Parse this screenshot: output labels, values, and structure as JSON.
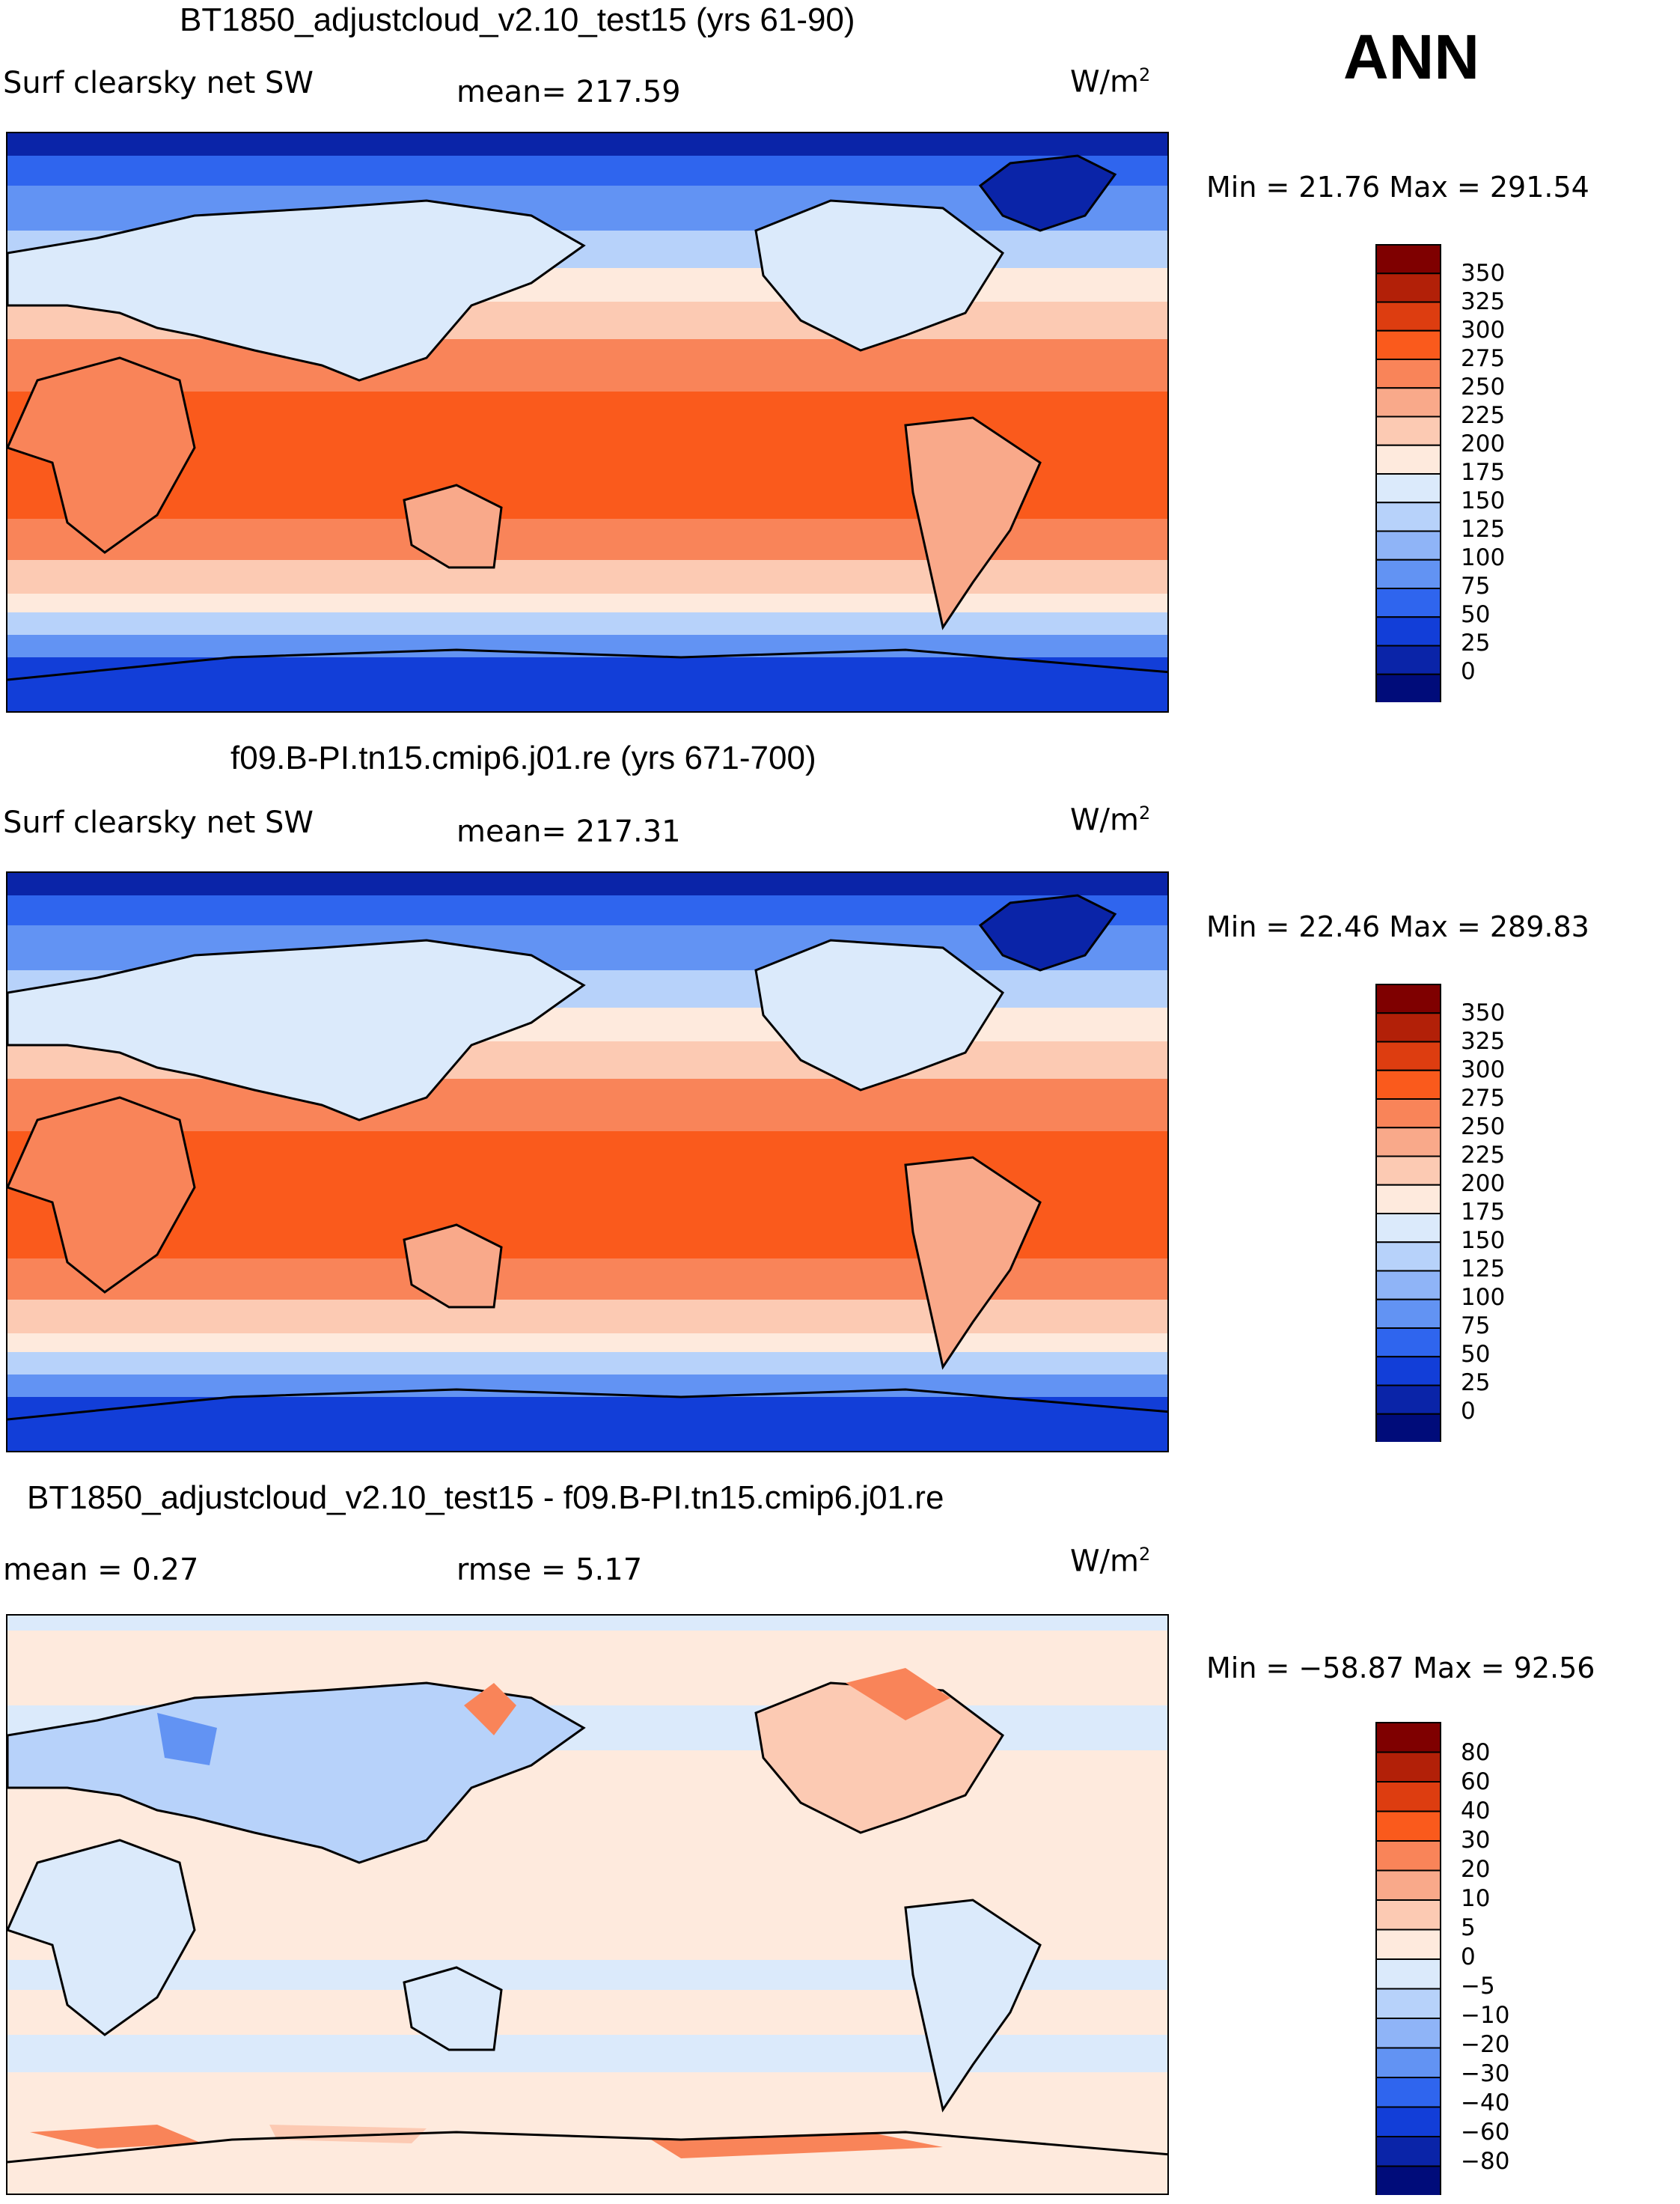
{
  "season": "ANN",
  "panels": [
    {
      "title": "BT1850_adjustcloud_v2.10_test15 (yrs 61-90)",
      "left_label": "Surf clearsky net SW",
      "mid_label": "mean= 217.59",
      "units": "W/m",
      "units_sup": "2",
      "minmax": "Min =   21.76 Max = 291.54",
      "levels": [
        "350",
        "325",
        "300",
        "275",
        "250",
        "225",
        "200",
        "175",
        "150",
        "125",
        "100",
        "75",
        "50",
        "25",
        "0"
      ]
    },
    {
      "title": "f09.B-PI.tn15.cmip6.j01.re (yrs 671-700)",
      "left_label": "Surf clearsky net SW",
      "mid_label": "mean= 217.31",
      "units": "W/m",
      "units_sup": "2",
      "minmax": "Min =   22.46 Max = 289.83",
      "levels": [
        "350",
        "325",
        "300",
        "275",
        "250",
        "225",
        "200",
        "175",
        "150",
        "125",
        "100",
        "75",
        "50",
        "25",
        "0"
      ]
    },
    {
      "title": "BT1850_adjustcloud_v2.10_test15 - f09.B-PI.tn15.cmip6.j01.re",
      "left_label": "mean =    0.27",
      "mid_label": "rmse =    5.17",
      "units": "W/m",
      "units_sup": "2",
      "minmax": "Min = −58.87 Max =   92.56",
      "levels": [
        "80",
        "60",
        "40",
        "30",
        "20",
        "10",
        "5",
        "0",
        "−5",
        "−10",
        "−20",
        "−30",
        "−40",
        "−60",
        "−80"
      ]
    }
  ],
  "colors": {
    "scale": [
      "#7f0000",
      "#b22008",
      "#dd3d10",
      "#fa5a1c",
      "#f98459",
      "#f9a98a",
      "#fccab3",
      "#feeadd",
      "#dbeafb",
      "#b7d2fa",
      "#8fb4f7",
      "#6293f3",
      "#2f65ee",
      "#123ed8",
      "#0a24a8",
      "#000c7a"
    ],
    "ocean_low": "#0d2fd9"
  }
}
